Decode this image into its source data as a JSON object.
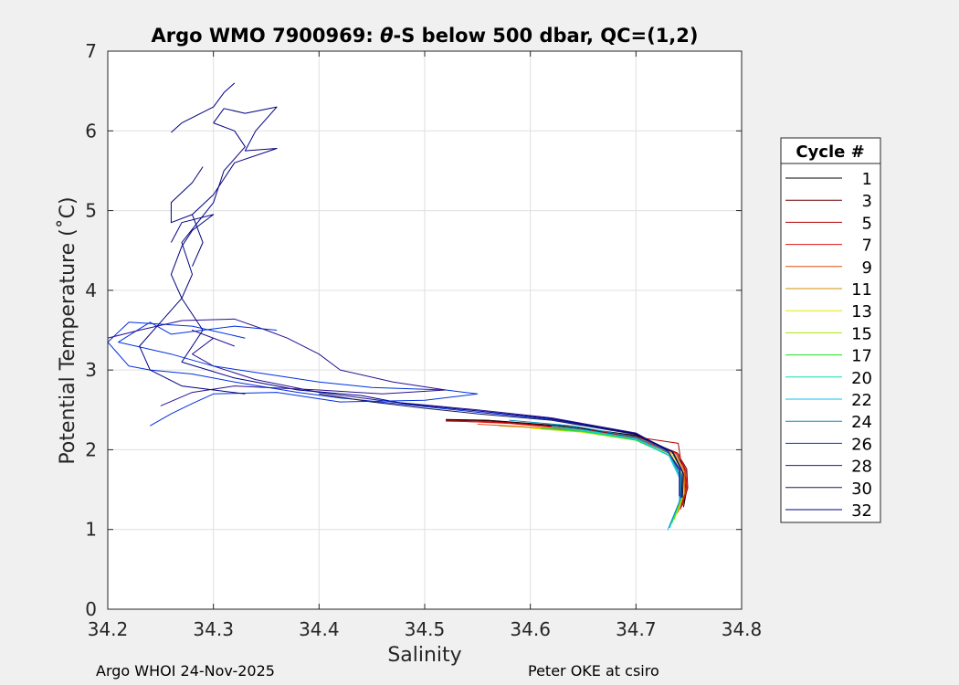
{
  "chart_data": {
    "type": "line",
    "title_prefix": "Argo WMO 7900969: ",
    "title_theta": "θ",
    "title_suffix": "-S below 500 dbar,  QC=(1,2)",
    "xlabel": "Salinity",
    "ylabel": "Potential Temperature (˚C)",
    "xlim": [
      34.2,
      34.8
    ],
    "ylim": [
      0,
      7
    ],
    "xticks": [
      "34.2",
      "34.3",
      "34.4",
      "34.5",
      "34.6",
      "34.7",
      "34.8"
    ],
    "yticks": [
      "0",
      "1",
      "2",
      "3",
      "4",
      "5",
      "6",
      "7"
    ],
    "grid": true,
    "legend_title": "Cycle #",
    "legend_placement": "right",
    "series": [
      {
        "name": "1",
        "color": "#000000",
        "points": [
          [
            34.745,
            1.28
          ],
          [
            34.748,
            1.5
          ],
          [
            34.747,
            1.75
          ],
          [
            34.738,
            1.95
          ],
          [
            34.7,
            2.18
          ],
          [
            34.63,
            2.3
          ],
          [
            34.56,
            2.37
          ],
          [
            34.52,
            2.38
          ]
        ]
      },
      {
        "name": "3",
        "color": "#6b0000",
        "points": [
          [
            34.744,
            1.3
          ],
          [
            34.749,
            1.52
          ],
          [
            34.748,
            1.76
          ],
          [
            34.739,
            1.96
          ],
          [
            34.7,
            2.17
          ],
          [
            34.63,
            2.29
          ],
          [
            34.56,
            2.36
          ],
          [
            34.52,
            2.37
          ]
        ]
      },
      {
        "name": "5",
        "color": "#b00000",
        "points": [
          [
            34.742,
            1.25
          ],
          [
            34.747,
            1.5
          ],
          [
            34.746,
            1.75
          ],
          [
            34.742,
            1.9
          ],
          [
            34.74,
            2.08
          ],
          [
            34.7,
            2.16
          ],
          [
            34.64,
            2.27
          ],
          [
            34.58,
            2.34
          ],
          [
            34.52,
            2.36
          ]
        ]
      },
      {
        "name": "7",
        "color": "#e01010",
        "points": [
          [
            34.743,
            1.28
          ],
          [
            34.748,
            1.5
          ],
          [
            34.747,
            1.75
          ],
          [
            34.74,
            1.95
          ],
          [
            34.7,
            2.15
          ],
          [
            34.64,
            2.26
          ],
          [
            34.58,
            2.33
          ],
          [
            34.53,
            2.36
          ]
        ]
      },
      {
        "name": "9",
        "color": "#e05010",
        "points": [
          [
            34.74,
            1.22
          ],
          [
            34.746,
            1.48
          ],
          [
            34.746,
            1.73
          ],
          [
            34.738,
            1.95
          ],
          [
            34.7,
            2.14
          ],
          [
            34.64,
            2.25
          ],
          [
            34.58,
            2.3
          ],
          [
            34.55,
            2.32
          ]
        ]
      },
      {
        "name": "11",
        "color": "#d09000",
        "points": [
          [
            34.739,
            1.2
          ],
          [
            34.746,
            1.46
          ],
          [
            34.745,
            1.72
          ],
          [
            34.737,
            1.94
          ],
          [
            34.7,
            2.13
          ],
          [
            34.65,
            2.23
          ],
          [
            34.6,
            2.28
          ],
          [
            34.57,
            2.3
          ]
        ]
      },
      {
        "name": "13",
        "color": "#e8e800",
        "points": [
          [
            34.737,
            1.15
          ],
          [
            34.745,
            1.45
          ],
          [
            34.745,
            1.7
          ],
          [
            34.735,
            1.93
          ],
          [
            34.7,
            2.12
          ],
          [
            34.65,
            2.22
          ],
          [
            34.6,
            2.27
          ]
        ]
      },
      {
        "name": "15",
        "color": "#a8e800",
        "points": [
          [
            34.736,
            1.12
          ],
          [
            34.744,
            1.42
          ],
          [
            34.744,
            1.68
          ],
          [
            34.734,
            1.92
          ],
          [
            34.7,
            2.12
          ],
          [
            34.65,
            2.22
          ],
          [
            34.61,
            2.26
          ]
        ]
      },
      {
        "name": "17",
        "color": "#20e020",
        "points": [
          [
            34.734,
            1.08
          ],
          [
            34.743,
            1.4
          ],
          [
            34.743,
            1.68
          ],
          [
            34.733,
            1.92
          ],
          [
            34.7,
            2.12
          ],
          [
            34.65,
            2.23
          ],
          [
            34.61,
            2.27
          ]
        ]
      },
      {
        "name": "20",
        "color": "#10e0b0",
        "points": [
          [
            34.732,
            1.02
          ],
          [
            34.742,
            1.38
          ],
          [
            34.742,
            1.66
          ],
          [
            34.732,
            1.92
          ],
          [
            34.7,
            2.13
          ],
          [
            34.65,
            2.24
          ],
          [
            34.62,
            2.28
          ]
        ]
      },
      {
        "name": "22",
        "color": "#10c0f0",
        "points": [
          [
            34.73,
            0.99
          ],
          [
            34.741,
            1.35
          ],
          [
            34.741,
            1.65
          ],
          [
            34.731,
            1.93
          ],
          [
            34.7,
            2.14
          ],
          [
            34.65,
            2.25
          ],
          [
            34.62,
            2.3
          ]
        ]
      },
      {
        "name": "24",
        "color": "#0090c0",
        "points": [
          [
            34.731,
            1.02
          ],
          [
            34.742,
            1.38
          ],
          [
            34.742,
            1.66
          ],
          [
            34.732,
            1.95
          ],
          [
            34.7,
            2.16
          ],
          [
            34.64,
            2.3
          ],
          [
            34.58,
            2.37
          ]
        ]
      },
      {
        "name": "26",
        "color": "#0030e0",
        "points": [
          [
            34.742,
            1.4
          ],
          [
            34.742,
            1.75
          ],
          [
            34.73,
            1.98
          ],
          [
            34.7,
            2.2
          ],
          [
            34.62,
            2.38
          ],
          [
            34.55,
            2.47
          ],
          [
            34.48,
            2.57
          ],
          [
            34.42,
            2.65
          ],
          [
            34.38,
            2.72
          ],
          [
            34.32,
            2.85
          ],
          [
            34.28,
            2.95
          ],
          [
            34.24,
            3.0
          ],
          [
            34.22,
            3.05
          ],
          [
            34.2,
            3.35
          ],
          [
            34.22,
            3.6
          ],
          [
            34.28,
            3.55
          ],
          [
            34.33,
            3.4
          ]
        ]
      },
      {
        "name": "28",
        "color": "#2a1090",
        "points": [
          [
            34.741,
            1.42
          ],
          [
            34.741,
            1.74
          ],
          [
            34.73,
            1.99
          ],
          [
            34.7,
            2.21
          ],
          [
            34.62,
            2.4
          ],
          [
            34.55,
            2.5
          ],
          [
            34.47,
            2.6
          ],
          [
            34.4,
            2.72
          ],
          [
            34.34,
            2.88
          ],
          [
            34.3,
            3.05
          ],
          [
            34.28,
            3.2
          ],
          [
            34.3,
            3.4
          ],
          [
            34.28,
            3.5
          ],
          [
            34.32,
            3.3
          ]
        ]
      },
      {
        "name": "30",
        "color": "#1a1a50",
        "points": [
          [
            34.744,
            1.4
          ],
          [
            34.745,
            1.7
          ],
          [
            34.735,
            1.97
          ],
          [
            34.7,
            2.19
          ],
          [
            34.62,
            2.37
          ],
          [
            34.55,
            2.45
          ],
          [
            34.5,
            2.52
          ],
          [
            34.45,
            2.6
          ],
          [
            34.4,
            2.7
          ]
        ]
      },
      {
        "name": "32",
        "color": "#000080",
        "points": [
          [
            34.743,
            1.4
          ],
          [
            34.744,
            1.72
          ],
          [
            34.734,
            1.98
          ],
          [
            34.7,
            2.2
          ],
          [
            34.62,
            2.39
          ],
          [
            34.54,
            2.5
          ],
          [
            34.48,
            2.58
          ],
          [
            34.44,
            2.68
          ],
          [
            34.38,
            2.75
          ],
          [
            34.32,
            2.9
          ],
          [
            34.27,
            3.1
          ],
          [
            34.29,
            3.5
          ],
          [
            34.27,
            3.9
          ],
          [
            34.28,
            4.2
          ],
          [
            34.27,
            4.6
          ],
          [
            34.3,
            5.1
          ],
          [
            34.31,
            5.5
          ],
          [
            34.33,
            5.8
          ],
          [
            34.32,
            6.0
          ],
          [
            34.3,
            6.1
          ]
        ]
      }
    ],
    "extra_traces": [
      {
        "name": "26",
        "points": [
          [
            34.36,
            3.5
          ],
          [
            34.32,
            3.55
          ],
          [
            34.26,
            3.45
          ],
          [
            34.24,
            3.6
          ],
          [
            34.21,
            3.35
          ],
          [
            34.26,
            3.2
          ],
          [
            34.3,
            3.05
          ],
          [
            34.35,
            2.95
          ],
          [
            34.4,
            2.85
          ],
          [
            34.45,
            2.78
          ],
          [
            34.52,
            2.75
          ],
          [
            34.55,
            2.7
          ],
          [
            34.5,
            2.62
          ],
          [
            34.42,
            2.6
          ],
          [
            34.36,
            2.72
          ],
          [
            34.3,
            2.7
          ],
          [
            34.28,
            2.58
          ],
          [
            34.26,
            2.45
          ],
          [
            34.24,
            2.3
          ]
        ]
      },
      {
        "name": "32",
        "points": [
          [
            34.26,
            4.6
          ],
          [
            34.27,
            4.85
          ],
          [
            34.3,
            4.95
          ],
          [
            34.28,
            4.75
          ],
          [
            34.27,
            4.55
          ],
          [
            34.26,
            4.2
          ],
          [
            34.27,
            3.9
          ],
          [
            34.25,
            3.6
          ],
          [
            34.23,
            3.3
          ],
          [
            34.24,
            3.0
          ],
          [
            34.27,
            2.8
          ],
          [
            34.33,
            2.7
          ]
        ]
      },
      {
        "name": "32",
        "points": [
          [
            34.3,
            6.1
          ],
          [
            34.31,
            6.28
          ],
          [
            34.33,
            6.22
          ],
          [
            34.36,
            6.3
          ],
          [
            34.34,
            6.0
          ],
          [
            34.33,
            5.75
          ],
          [
            34.36,
            5.78
          ],
          [
            34.32,
            5.6
          ],
          [
            34.3,
            5.2
          ],
          [
            34.28,
            4.95
          ],
          [
            34.29,
            4.6
          ],
          [
            34.28,
            4.3
          ]
        ]
      },
      {
        "name": "32",
        "points": [
          [
            34.26,
            5.98
          ],
          [
            34.27,
            6.1
          ],
          [
            34.3,
            6.3
          ],
          [
            34.31,
            6.48
          ],
          [
            34.32,
            6.6
          ]
        ]
      },
      {
        "name": "32",
        "points": [
          [
            34.29,
            5.55
          ],
          [
            34.28,
            5.35
          ],
          [
            34.26,
            5.1
          ],
          [
            34.26,
            4.85
          ],
          [
            34.28,
            4.95
          ]
        ]
      },
      {
        "name": "28",
        "points": [
          [
            34.2,
            3.4
          ],
          [
            34.23,
            3.5
          ],
          [
            34.27,
            3.62
          ],
          [
            34.32,
            3.64
          ],
          [
            34.35,
            3.5
          ],
          [
            34.37,
            3.4
          ],
          [
            34.4,
            3.2
          ],
          [
            34.42,
            3.0
          ],
          [
            34.47,
            2.85
          ],
          [
            34.52,
            2.75
          ],
          [
            34.46,
            2.7
          ],
          [
            34.4,
            2.75
          ],
          [
            34.32,
            2.8
          ],
          [
            34.28,
            2.72
          ],
          [
            34.25,
            2.55
          ]
        ]
      }
    ]
  },
  "footer": {
    "left": "Argo WHOI 24-Nov-2025",
    "right": "Peter OKE at csiro"
  }
}
